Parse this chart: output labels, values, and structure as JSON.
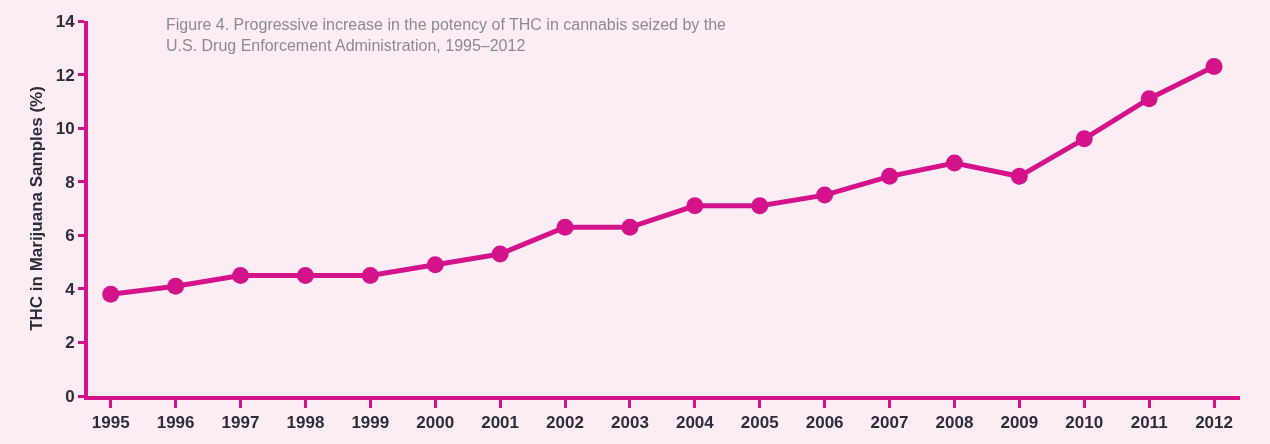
{
  "chart_data": {
    "type": "line",
    "title": "Figure 4. Progressive increase in the potency of THC in cannabis seized by the U.S. Drug Enforcement Administration, 1995–2012",
    "ylabel": "THC in Marijuana Samples (%)",
    "categories": [
      "1995",
      "1996",
      "1997",
      "1998",
      "1999",
      "2000",
      "2001",
      "2002",
      "2003",
      "2004",
      "2005",
      "2006",
      "2007",
      "2008",
      "2009",
      "2010",
      "2011",
      "2012"
    ],
    "series": [
      {
        "color": "#d4138b",
        "values": [
          3.8,
          4.1,
          4.5,
          4.5,
          4.5,
          4.9,
          5.3,
          6.3,
          6.3,
          7.1,
          7.1,
          7.5,
          8.2,
          8.7,
          8.2,
          9.6,
          11.1,
          12.3
        ]
      }
    ],
    "ylim": [
      0,
      14
    ],
    "yticks": [
      0,
      2,
      4,
      6,
      8,
      10,
      12,
      14
    ],
    "grid": false,
    "marker": "circle",
    "line_style": "solid"
  }
}
